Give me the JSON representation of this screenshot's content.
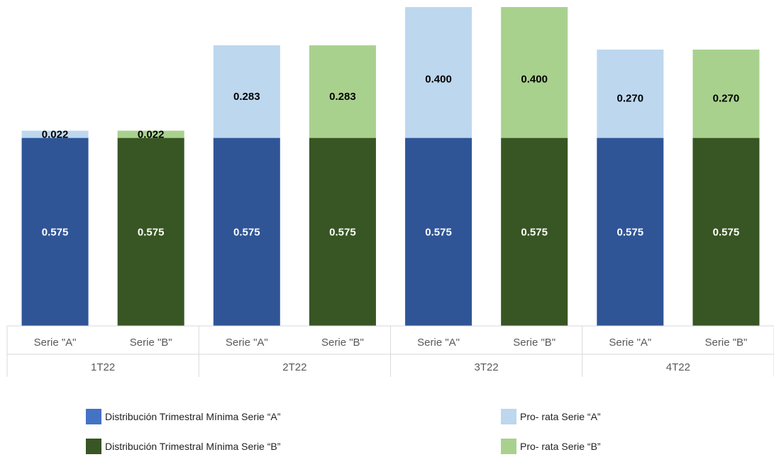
{
  "chart_data": {
    "type": "bar",
    "stacked": true,
    "groups": [
      {
        "label": "1T22",
        "categories": [
          "Serie \"A\"",
          "Serie \"B\""
        ]
      },
      {
        "label": "2T22",
        "categories": [
          "Serie \"A\"",
          "Serie \"B\""
        ]
      },
      {
        "label": "3T22",
        "categories": [
          "Serie \"A\"",
          "Serie \"B\""
        ]
      },
      {
        "label": "4T22",
        "categories": [
          "Serie \"A\"",
          "Serie \"B\""
        ]
      }
    ],
    "categories": [
      "1T22 Serie \"A\"",
      "1T22 Serie \"B\"",
      "2T22 Serie \"A\"",
      "2T22 Serie \"B\"",
      "3T22 Serie \"A\"",
      "3T22 Serie \"B\"",
      "4T22 Serie \"A\"",
      "4T22 Serie \"B\""
    ],
    "bars": [
      {
        "series": "A",
        "base": 0.575,
        "prorata": 0.022,
        "base_label": "0.575",
        "prorata_label": "0.022"
      },
      {
        "series": "B",
        "base": 0.575,
        "prorata": 0.022,
        "base_label": "0.575",
        "prorata_label": "0.022"
      },
      {
        "series": "A",
        "base": 0.575,
        "prorata": 0.283,
        "base_label": "0.575",
        "prorata_label": "0.283"
      },
      {
        "series": "B",
        "base": 0.575,
        "prorata": 0.283,
        "base_label": "0.575",
        "prorata_label": "0.283"
      },
      {
        "series": "A",
        "base": 0.575,
        "prorata": 0.4,
        "base_label": "0.575",
        "prorata_label": "0.400"
      },
      {
        "series": "B",
        "base": 0.575,
        "prorata": 0.4,
        "base_label": "0.575",
        "prorata_label": "0.400"
      },
      {
        "series": "A",
        "base": 0.575,
        "prorata": 0.27,
        "base_label": "0.575",
        "prorata_label": "0.270"
      },
      {
        "series": "B",
        "base": 0.575,
        "prorata": 0.27,
        "base_label": "0.575",
        "prorata_label": "0.270"
      }
    ],
    "series": [
      {
        "name": "Distribución Trimestral Mínima Serie “A”",
        "color": "#2f5597",
        "values": [
          0.575,
          null,
          0.575,
          null,
          0.575,
          null,
          0.575,
          null
        ]
      },
      {
        "name": "Distribución Trimestral Mínima Serie “B”",
        "color": "#375623",
        "values": [
          null,
          0.575,
          null,
          0.575,
          null,
          0.575,
          null,
          0.575
        ]
      },
      {
        "name": "Pro- rata Serie “A”",
        "color": "#bdd7ee",
        "values": [
          0.022,
          null,
          0.283,
          null,
          0.4,
          null,
          0.27,
          null
        ]
      },
      {
        "name": "Pro- rata Serie “B”",
        "color": "#a9d18e",
        "values": [
          null,
          0.022,
          null,
          0.283,
          null,
          0.4,
          null,
          0.27
        ]
      }
    ],
    "ylim": [
      0,
      0.975
    ],
    "grid": false,
    "legend_position": "bottom",
    "title": "",
    "xlabel": "",
    "ylabel": "",
    "label_colors": {
      "base": "#ffffff",
      "prorata": "#000000",
      "axis": "#595959",
      "axis_line": "#d9d9d9"
    }
  },
  "legend": [
    {
      "label": "Distribución Trimestral Mínima Serie “A”",
      "color": "#4472c4"
    },
    {
      "label": "Distribución Trimestral Mínima Serie “B”",
      "color": "#375623"
    },
    {
      "label": "Pro- rata Serie “A”",
      "color": "#bdd7ee"
    },
    {
      "label": "Pro- rata Serie “B”",
      "color": "#a9d18e"
    }
  ]
}
